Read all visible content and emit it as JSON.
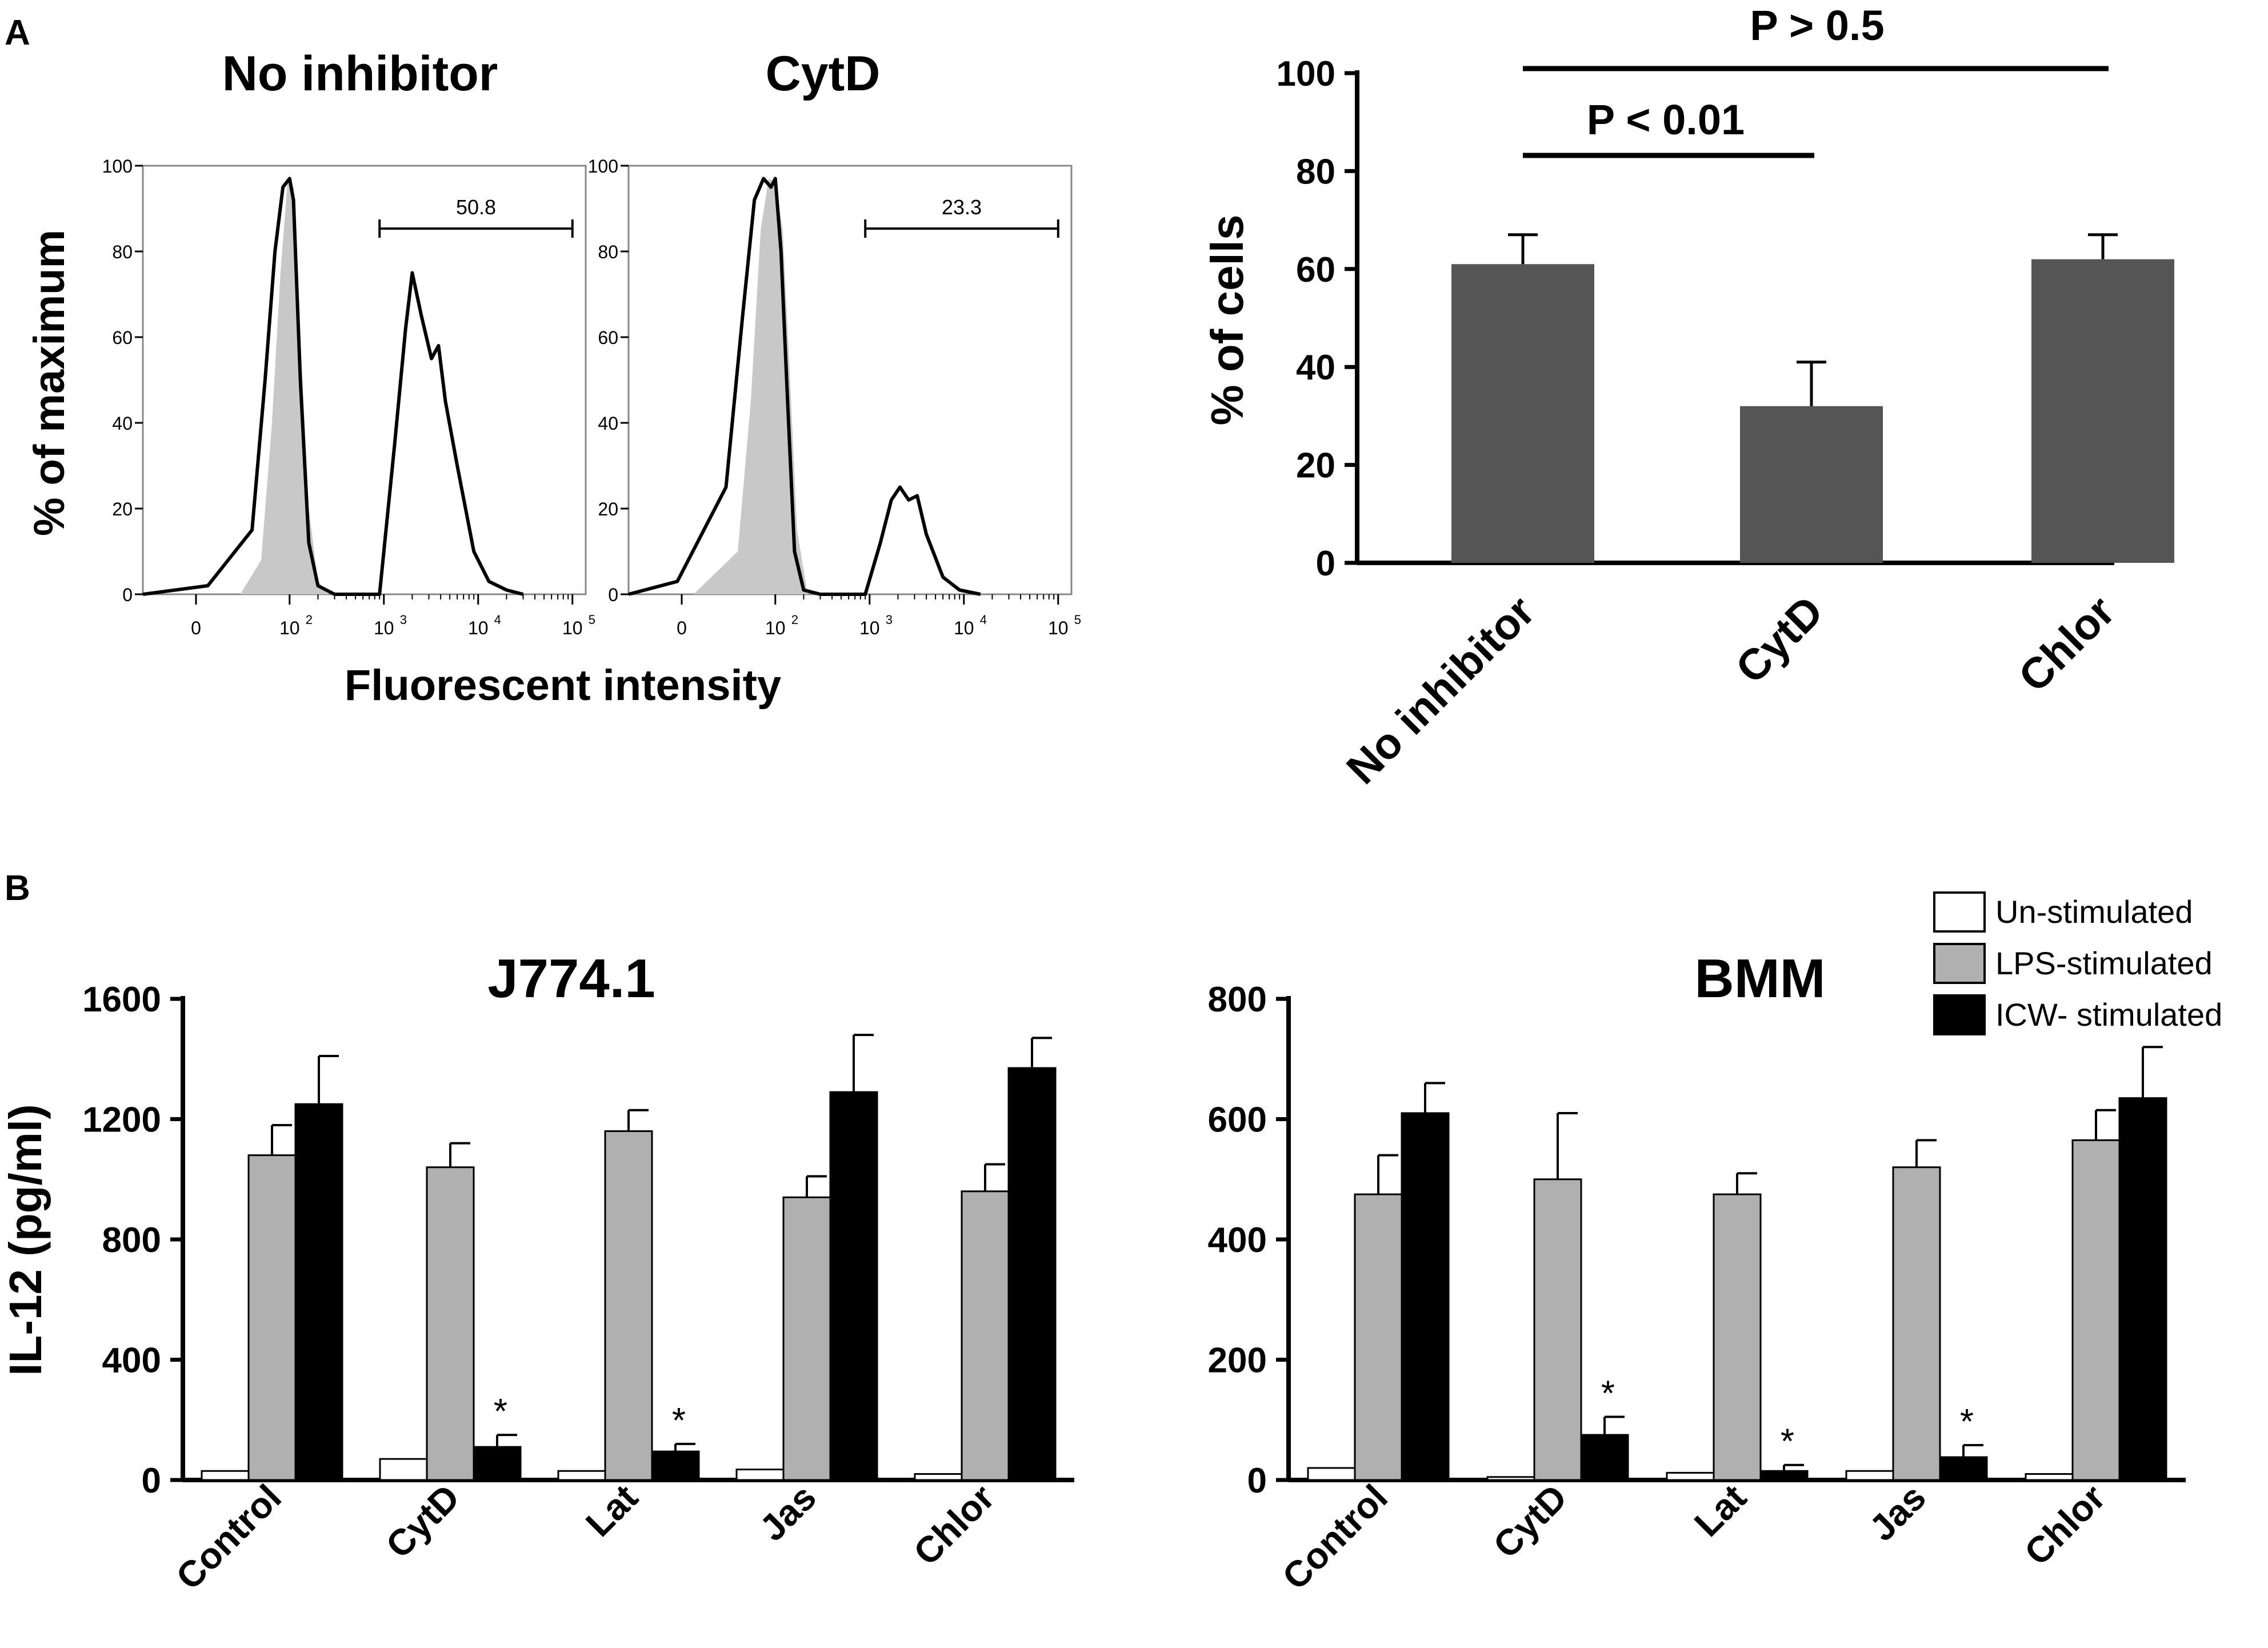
{
  "panel_labels": [
    "A",
    "B"
  ],
  "colors": {
    "axis": "#000000",
    "bar_dark": "#555555",
    "grey_fill": "#c8c8c8",
    "lps_bar": "#b0b0b0",
    "unstim_bar": "#ffffff",
    "icw_bar": "#000000"
  },
  "chart_data": [
    {
      "id": "flow-no-inhibitor",
      "type": "line",
      "title": "No inhibitor",
      "xlabel": "Fluorescent intensity",
      "ylabel": "% of maximum",
      "x_scale": "biexponential",
      "x_ticks": [
        "0",
        "10",
        "10",
        "10",
        "10"
      ],
      "x_tick_exponents": [
        "",
        "2",
        "3",
        "4",
        "5"
      ],
      "y_ticks": [
        "0",
        "20",
        "40",
        "60",
        "80",
        "100"
      ],
      "ylim": [
        0,
        100
      ],
      "gate": {
        "label": "50.8",
        "from": 900,
        "to": 100000
      },
      "series": [
        {
          "name": "control (filled grey)",
          "points": [
            [
              30,
              0
            ],
            [
              50,
              8
            ],
            [
              65,
              40
            ],
            [
              80,
              75
            ],
            [
              95,
              96
            ],
            [
              110,
              95
            ],
            [
              130,
              60
            ],
            [
              160,
              20
            ],
            [
              200,
              3
            ],
            [
              260,
              0
            ]
          ]
        },
        {
          "name": "stained (black line)",
          "points": [
            [
              0,
              0
            ],
            [
              20,
              2
            ],
            [
              40,
              15
            ],
            [
              55,
              50
            ],
            [
              70,
              80
            ],
            [
              85,
              95
            ],
            [
              100,
              97
            ],
            [
              110,
              92
            ],
            [
              130,
              50
            ],
            [
              160,
              12
            ],
            [
              200,
              2
            ],
            [
              300,
              0
            ],
            [
              900,
              0
            ],
            [
              1300,
              35
            ],
            [
              1700,
              62
            ],
            [
              2000,
              75
            ],
            [
              2500,
              65
            ],
            [
              3200,
              55
            ],
            [
              3800,
              58
            ],
            [
              4500,
              45
            ],
            [
              6000,
              30
            ],
            [
              9000,
              10
            ],
            [
              13000,
              3
            ],
            [
              20000,
              1
            ],
            [
              30000,
              0
            ]
          ]
        }
      ]
    },
    {
      "id": "flow-cytd",
      "type": "line",
      "title": "CytD",
      "xlabel": "Fluorescent intensity",
      "ylabel": "",
      "x_scale": "biexponential",
      "x_ticks": [
        "0",
        "10",
        "10",
        "10",
        "10"
      ],
      "x_tick_exponents": [
        "",
        "2",
        "3",
        "4",
        "5"
      ],
      "y_ticks": [
        "0",
        "20",
        "40",
        "60",
        "80",
        "100"
      ],
      "ylim": [
        0,
        100
      ],
      "gate": {
        "label": "23.3",
        "from": 900,
        "to": 100000
      },
      "series": [
        {
          "name": "control (filled grey)",
          "points": [
            [
              20,
              0
            ],
            [
              40,
              10
            ],
            [
              55,
              45
            ],
            [
              70,
              85
            ],
            [
              85,
              97
            ],
            [
              100,
              96
            ],
            [
              120,
              85
            ],
            [
              140,
              55
            ],
            [
              170,
              15
            ],
            [
              220,
              0
            ]
          ]
        },
        {
          "name": "stained (black line)",
          "points": [
            [
              0,
              0
            ],
            [
              15,
              3
            ],
            [
              30,
              25
            ],
            [
              45,
              65
            ],
            [
              60,
              92
            ],
            [
              75,
              97
            ],
            [
              90,
              95
            ],
            [
              100,
              97
            ],
            [
              115,
              80
            ],
            [
              135,
              45
            ],
            [
              160,
              10
            ],
            [
              200,
              1
            ],
            [
              300,
              0
            ],
            [
              900,
              0
            ],
            [
              1300,
              12
            ],
            [
              1700,
              22
            ],
            [
              2100,
              25
            ],
            [
              2600,
              22
            ],
            [
              3200,
              23
            ],
            [
              4000,
              14
            ],
            [
              6000,
              4
            ],
            [
              9000,
              1
            ],
            [
              15000,
              0
            ]
          ]
        }
      ]
    },
    {
      "id": "percent-cells",
      "type": "bar",
      "title": "",
      "xlabel": "",
      "ylabel": "% of cells",
      "categories": [
        "No inhibitor",
        "CytD",
        "Chlor"
      ],
      "values": [
        61,
        32,
        62
      ],
      "errors": [
        6,
        9,
        5
      ],
      "ylim": [
        0,
        100
      ],
      "y_ticks": [
        "0",
        "20",
        "40",
        "60",
        "80",
        "100"
      ],
      "annotations": [
        {
          "label": "P > 0.5",
          "from": "No inhibitor",
          "to": "Chlor",
          "y": 100
        },
        {
          "label": "P < 0.01",
          "from": "No inhibitor",
          "to": "CytD",
          "y": 83
        }
      ]
    },
    {
      "id": "il12-j774",
      "type": "bar",
      "title": "J774.1",
      "xlabel": "",
      "ylabel": "IL-12 (pg/ml)",
      "categories": [
        "Control",
        "CytD",
        "Lat",
        "Jas",
        "Chlor"
      ],
      "ylim": [
        0,
        1600
      ],
      "y_ticks": [
        "0",
        "400",
        "800",
        "1200",
        "1600"
      ],
      "series": [
        {
          "name": "Un-stimulated",
          "values": [
            30,
            70,
            30,
            35,
            20
          ],
          "errors": [
            0,
            0,
            0,
            0,
            0
          ]
        },
        {
          "name": "LPS-stimulated",
          "values": [
            1080,
            1040,
            1160,
            940,
            960
          ],
          "errors": [
            100,
            80,
            70,
            70,
            90
          ]
        },
        {
          "name": "ICW- stimulated",
          "values": [
            1250,
            110,
            95,
            1290,
            1370
          ],
          "errors": [
            160,
            40,
            25,
            190,
            100
          ]
        }
      ],
      "significance": [
        "",
        "*",
        "*",
        "",
        ""
      ]
    },
    {
      "id": "il12-bmm",
      "type": "bar",
      "title": "BMM",
      "xlabel": "",
      "ylabel": "",
      "categories": [
        "Control",
        "CytD",
        "Lat",
        "Jas",
        "Chlor"
      ],
      "ylim": [
        0,
        800
      ],
      "y_ticks": [
        "0",
        "200",
        "400",
        "600",
        "800"
      ],
      "series": [
        {
          "name": "Un-stimulated",
          "values": [
            20,
            5,
            12,
            15,
            10
          ],
          "errors": [
            0,
            0,
            0,
            0,
            0
          ]
        },
        {
          "name": "LPS-stimulated",
          "values": [
            475,
            500,
            475,
            520,
            565
          ],
          "errors": [
            65,
            110,
            35,
            45,
            50
          ]
        },
        {
          "name": "ICW- stimulated",
          "values": [
            610,
            75,
            15,
            38,
            635
          ],
          "errors": [
            50,
            30,
            10,
            20,
            85
          ]
        }
      ],
      "significance": [
        "",
        "*",
        "*",
        "*",
        ""
      ]
    }
  ],
  "legend": {
    "placement": "top-right",
    "entries": [
      {
        "label": "Un-stimulated",
        "color": "#ffffff"
      },
      {
        "label": "LPS-stimulated",
        "color": "#b0b0b0"
      },
      {
        "label": "ICW- stimulated",
        "color": "#000000"
      }
    ]
  }
}
